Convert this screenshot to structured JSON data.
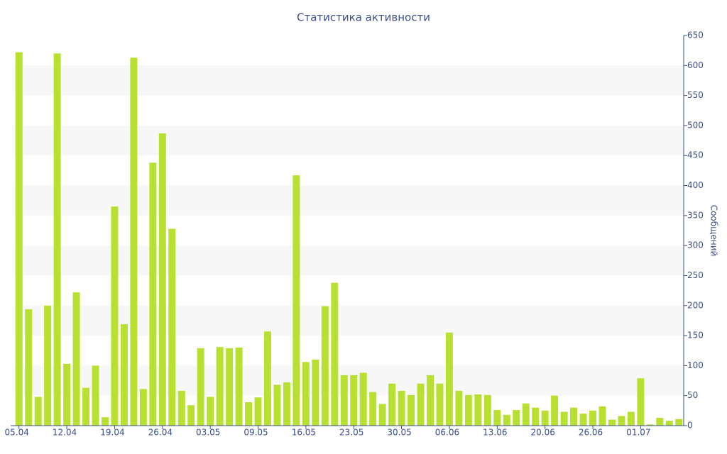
{
  "chart_data": {
    "type": "bar",
    "title": "Статистика активности",
    "ylabel": "Сообщений",
    "categories": [
      "05.04",
      null,
      null,
      null,
      null,
      "12.04",
      null,
      null,
      null,
      null,
      "19.04",
      null,
      null,
      null,
      null,
      "26.04",
      null,
      null,
      null,
      null,
      "03.05",
      null,
      null,
      null,
      null,
      "09.05",
      null,
      null,
      null,
      null,
      "16.05",
      null,
      null,
      null,
      null,
      "23.05",
      null,
      null,
      null,
      null,
      "30.05",
      null,
      null,
      null,
      null,
      "06.06",
      null,
      null,
      null,
      null,
      "13.06",
      null,
      null,
      null,
      null,
      "20.06",
      null,
      null,
      null,
      null,
      "26.06",
      null,
      null,
      null,
      null,
      "01.07",
      null,
      null,
      null,
      null
    ],
    "values": [
      622,
      194,
      48,
      200,
      620,
      103,
      222,
      63,
      100,
      14,
      365,
      169,
      613,
      61,
      438,
      487,
      328,
      58,
      34,
      129,
      48,
      131,
      129,
      130,
      39,
      47,
      157,
      68,
      72,
      417,
      106,
      110,
      199,
      238,
      84,
      84,
      88,
      56,
      36,
      70,
      58,
      51,
      70,
      84,
      70,
      155,
      58,
      51,
      52,
      51,
      26,
      18,
      26,
      37,
      30,
      25,
      50,
      23,
      30,
      20,
      25,
      32,
      10,
      16,
      23,
      79,
      2,
      13,
      8,
      11
    ],
    "color": "#b8e030",
    "ylim": [
      0,
      650
    ],
    "yticks": [
      0,
      50,
      100,
      150,
      200,
      250,
      300,
      350,
      400,
      450,
      500,
      550,
      600,
      650
    ],
    "grid": true,
    "y_axis_side": "right"
  }
}
